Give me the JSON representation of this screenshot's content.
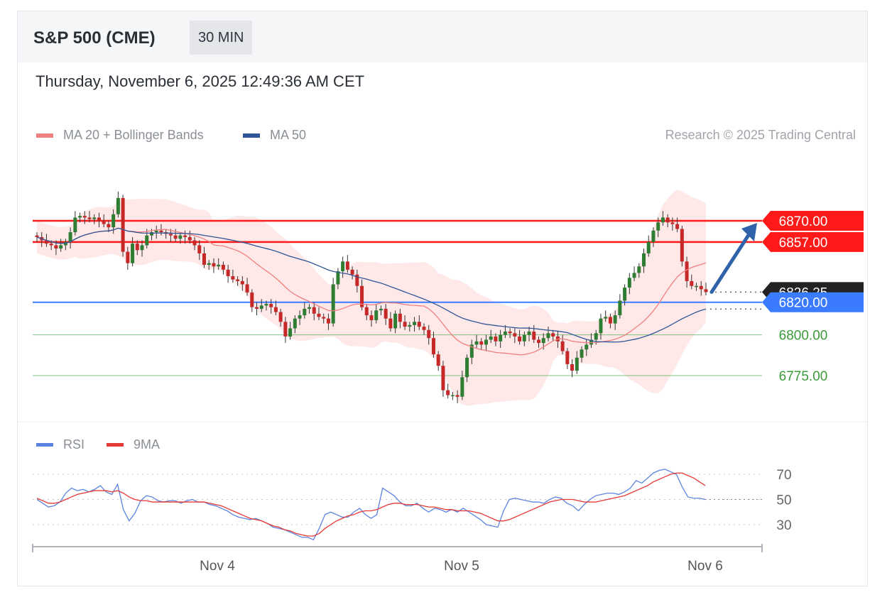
{
  "header": {
    "title": "S&P 500 (CME)",
    "interval": "30 MIN"
  },
  "datetime": "Thursday, November 6, 2025 12:49:36 AM CET",
  "legend": {
    "ma20": "MA 20 + Bollinger Bands",
    "ma50": "MA 50"
  },
  "credit": "Research © 2025 Trading Central",
  "rsi_legend": {
    "rsi": "RSI",
    "ma9": "9MA"
  },
  "colors": {
    "ma20": "#f08080",
    "ma50": "#2f5596",
    "band": "#fde0e0",
    "resistance": "#ff1a1a",
    "support": "#3a7bff",
    "target": "#4caf50",
    "up_candle": "#2e7d32",
    "down_candle": "#c62828",
    "arrow": "#2f62a8",
    "rsi": "#5b84e0",
    "rsi_ma": "#e53935"
  },
  "chart_data": [
    {
      "type": "candlestick",
      "price_range": [
        6755,
        6890
      ],
      "x_labels": [
        "Nov 4",
        "Nov 5",
        "Nov 6"
      ],
      "levels": [
        {
          "value": 6870,
          "label": "6870.00",
          "kind": "resistance"
        },
        {
          "value": 6857,
          "label": "6857.00",
          "kind": "resistance"
        },
        {
          "value": 6826.25,
          "label": "6826.25",
          "kind": "last"
        },
        {
          "value": 6820,
          "label": "6820.00",
          "kind": "support"
        },
        {
          "value": 6800,
          "label": "6800.00",
          "kind": "target"
        },
        {
          "value": 6775,
          "label": "6775.00",
          "kind": "target"
        }
      ],
      "closes": [
        6860,
        6858,
        6856,
        6855,
        6853,
        6855,
        6857,
        6863,
        6872,
        6873,
        6872,
        6871,
        6872,
        6870,
        6868,
        6866,
        6874,
        6884,
        6851,
        6844,
        6856,
        6852,
        6855,
        6861,
        6863,
        6864,
        6863,
        6862,
        6861,
        6859,
        6861,
        6860,
        6858,
        6855,
        6850,
        6843,
        6844,
        6842,
        6843,
        6840,
        6836,
        6834,
        6833,
        6831,
        6826,
        6817,
        6816,
        6818,
        6819,
        6817,
        6814,
        6808,
        6799,
        6804,
        6810,
        6812,
        6816,
        6817,
        6813,
        6811,
        6810,
        6807,
        6831,
        6839,
        6845,
        6840,
        6837,
        6830,
        6817,
        6812,
        6809,
        6815,
        6816,
        6810,
        6804,
        6813,
        6808,
        6805,
        6806,
        6808,
        6805,
        6803,
        6798,
        6788,
        6781,
        6766,
        6763,
        6763,
        6762,
        6774,
        6786,
        6794,
        6796,
        6794,
        6797,
        6799,
        6796,
        6800,
        6802,
        6801,
        6799,
        6796,
        6800,
        6802,
        6797,
        6795,
        6798,
        6801,
        6799,
        6796,
        6790,
        6782,
        6778,
        6786,
        6791,
        6794,
        6797,
        6801,
        6810,
        6811,
        6807,
        6812,
        6821,
        6829,
        6835,
        6838,
        6842,
        6850,
        6857,
        6864,
        6869,
        6872,
        6869,
        6868,
        6865,
        6845,
        6833,
        6830,
        6830,
        6828,
        6826.25
      ],
      "ma20_label": "MA 20 + Bollinger Bands",
      "ma50_label": "MA 50"
    },
    {
      "type": "line",
      "name": "RSI",
      "ylim": [
        15,
        80
      ],
      "y_ticks": [
        70,
        50,
        30
      ],
      "rsi": [
        50,
        47,
        44,
        45,
        48,
        55,
        59,
        57,
        58,
        56,
        58,
        61,
        56,
        54,
        62,
        42,
        33,
        39,
        49,
        53,
        52,
        49,
        48,
        49,
        49,
        47,
        49,
        50,
        48,
        48,
        46,
        45,
        43,
        41,
        38,
        36,
        35,
        34,
        35,
        33,
        31,
        28,
        27,
        26,
        24,
        22,
        20,
        20,
        18,
        27,
        38,
        40,
        38,
        36,
        36,
        40,
        43,
        38,
        35,
        38,
        59,
        56,
        53,
        48,
        45,
        45,
        47,
        43,
        40,
        43,
        42,
        40,
        42,
        40,
        43,
        40,
        37,
        34,
        30,
        29,
        28,
        41,
        50,
        51,
        50,
        49,
        48,
        48,
        47,
        50,
        52,
        51,
        47,
        45,
        41,
        46,
        50,
        53,
        54,
        55,
        55,
        54,
        56,
        59,
        65,
        63,
        67,
        71,
        73,
        74,
        72,
        70,
        60,
        52,
        51,
        51,
        50
      ],
      "ma9": [
        51,
        49,
        47,
        47,
        48,
        50,
        52,
        54,
        55,
        56,
        57,
        57,
        57,
        56,
        57,
        55,
        52,
        50,
        49,
        49,
        48,
        48,
        48,
        48,
        48,
        48,
        48,
        48,
        48,
        48,
        47,
        46,
        45,
        43,
        41,
        39,
        37,
        35,
        34,
        33,
        31,
        29,
        28,
        26,
        25,
        23,
        22,
        21,
        21,
        23,
        27,
        30,
        33,
        35,
        37,
        38,
        40,
        41,
        41,
        42,
        44,
        46,
        47,
        47,
        46,
        46,
        46,
        45,
        44,
        44,
        43,
        42,
        42,
        41,
        41,
        41,
        40,
        39,
        37,
        35,
        33,
        33,
        34,
        36,
        38,
        40,
        42,
        44,
        46,
        48,
        49,
        50,
        50,
        50,
        49,
        48,
        48,
        48,
        49,
        50,
        51,
        52,
        53,
        55,
        57,
        59,
        61,
        64,
        66,
        68,
        70,
        71,
        71,
        69,
        67,
        64,
        61
      ]
    }
  ]
}
